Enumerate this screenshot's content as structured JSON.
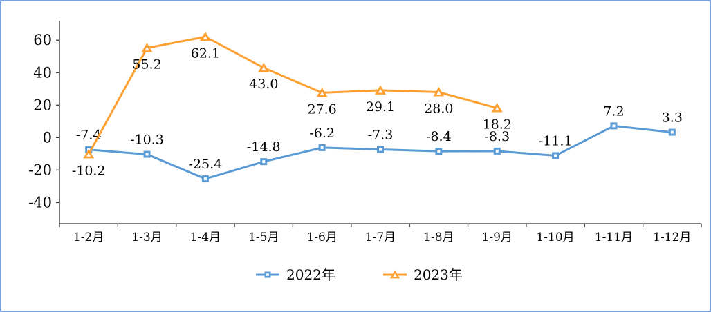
{
  "frame": {
    "border_color": "#7f9fd8",
    "background": "#ffffff"
  },
  "chart_data": {
    "type": "line",
    "title": "",
    "xlabel": "",
    "ylabel": "",
    "categories": [
      "1-2月",
      "1-3月",
      "1-4月",
      "1-5月",
      "1-6月",
      "1-7月",
      "1-8月",
      "1-9月",
      "1-10月",
      "1-11月",
      "1-12月"
    ],
    "series": [
      {
        "name": "2022年",
        "color": "#5b9bd5",
        "marker": "square",
        "label_position": "above",
        "values": [
          -7.4,
          -10.3,
          -25.4,
          -14.8,
          -6.2,
          -7.3,
          -8.4,
          -8.3,
          -11.1,
          7.2,
          3.3
        ]
      },
      {
        "name": "2023年",
        "color": "#ffa033",
        "marker": "triangle",
        "label_position": "below",
        "values": [
          -10.2,
          55.2,
          62.1,
          43.0,
          27.6,
          29.1,
          28.0,
          18.2,
          null,
          null,
          null
        ]
      }
    ],
    "y_ticks": [
      60,
      40,
      20,
      0,
      -20,
      -40
    ],
    "ylim": [
      -53,
      72
    ],
    "grid": false,
    "legend_position": "bottom",
    "axis_color": "#333333",
    "text_color": "#000000"
  }
}
